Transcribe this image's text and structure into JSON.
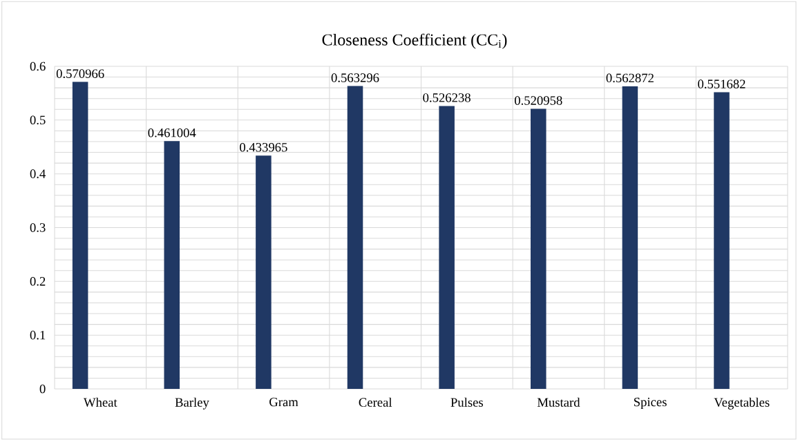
{
  "chart_data": {
    "type": "bar",
    "title": "Closeness Coefficient (CC$_{i}$)",
    "categories": [
      "Wheat",
      "Barley",
      "Gram",
      "Cereal",
      "Pulses",
      "Mustard",
      "Spices",
      "Vegetables"
    ],
    "values": [
      0.570966,
      0.461004,
      0.433965,
      0.563296,
      0.526238,
      0.520958,
      0.562872,
      0.551682
    ],
    "color": "#203864",
    "data_labels": true,
    "grid": true,
    "ylim": [
      0,
      0.6
    ],
    "yticks": [
      0,
      0.1,
      0.2,
      0.3,
      0.4,
      0.5,
      0.6
    ]
  }
}
